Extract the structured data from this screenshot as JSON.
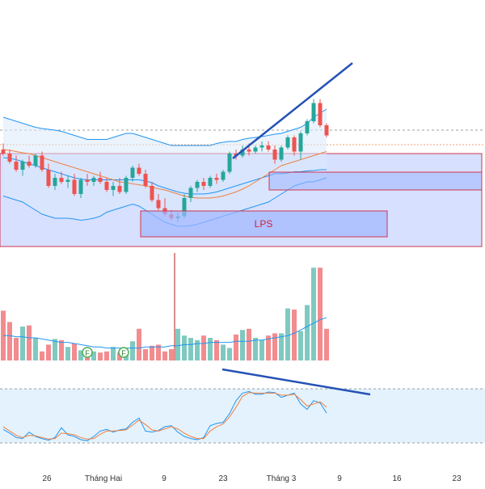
{
  "colors": {
    "up": "#26a69a",
    "down": "#ef5350",
    "vol_up": "#80c9c0",
    "vol_down": "#f28c8f",
    "bb_band": "#2196f3",
    "bb_fill": "#dbe9fb",
    "ma": "#f08040",
    "trendline": "#2452b5",
    "zone_fill": "#9fb6ff",
    "zone_border": "#d0334f",
    "stoch_k": "#2196f3",
    "stoch_d": "#f08040",
    "stoch_band": "#e3f2fd",
    "vline": "#b71c1c"
  },
  "chart_data": {
    "type": "candlestick",
    "zone_label": "LPS",
    "x_ticks": [
      "26",
      "Tháng Hai",
      "9",
      "23",
      "Tháng 3",
      "9",
      "16",
      "23"
    ],
    "candles": [
      {
        "o": 5.0,
        "h": 6.5,
        "l": 3.5,
        "c": 4.0
      },
      {
        "o": 4.0,
        "h": 5.0,
        "l": 1.5,
        "c": 2.0
      },
      {
        "o": 2.0,
        "h": 3.5,
        "l": -0.5,
        "c": 0.0
      },
      {
        "o": 0.0,
        "h": 2.5,
        "l": -1.5,
        "c": 2.0
      },
      {
        "o": 2.0,
        "h": 3.5,
        "l": 0.5,
        "c": 1.0
      },
      {
        "o": 1.0,
        "h": 4.0,
        "l": 0.5,
        "c": 3.5
      },
      {
        "o": 3.5,
        "h": 4.5,
        "l": -0.5,
        "c": 0.0
      },
      {
        "o": 0.0,
        "h": 1.5,
        "l": -4.5,
        "c": -4.0
      },
      {
        "o": -4.0,
        "h": -1.0,
        "l": -5.0,
        "c": -2.0
      },
      {
        "o": -2.0,
        "h": -0.5,
        "l": -3.5,
        "c": -3.0
      },
      {
        "o": -3.0,
        "h": -1.5,
        "l": -4.5,
        "c": -2.5
      },
      {
        "o": -2.5,
        "h": -1.0,
        "l": -6.5,
        "c": -6.0
      },
      {
        "o": -6.0,
        "h": -2.0,
        "l": -7.0,
        "c": -2.5
      },
      {
        "o": -2.5,
        "h": -1.0,
        "l": -4.0,
        "c": -3.0
      },
      {
        "o": -3.0,
        "h": -1.5,
        "l": -4.0,
        "c": -2.0
      },
      {
        "o": -2.0,
        "h": -0.5,
        "l": -3.5,
        "c": -3.0
      },
      {
        "o": -3.0,
        "h": -2.0,
        "l": -5.5,
        "c": -5.0
      },
      {
        "o": -5.0,
        "h": -3.0,
        "l": -6.5,
        "c": -4.0
      },
      {
        "o": -4.0,
        "h": -2.0,
        "l": -6.0,
        "c": -5.5
      },
      {
        "o": -5.5,
        "h": -1.5,
        "l": -6.0,
        "c": -2.0
      },
      {
        "o": -2.0,
        "h": 1.0,
        "l": -3.0,
        "c": 0.5
      },
      {
        "o": 0.5,
        "h": 1.5,
        "l": -1.5,
        "c": -1.0
      },
      {
        "o": -1.0,
        "h": 0.0,
        "l": -4.5,
        "c": -4.0
      },
      {
        "o": -4.0,
        "h": -3.0,
        "l": -8.0,
        "c": -7.5
      },
      {
        "o": -7.5,
        "h": -6.0,
        "l": -10.0,
        "c": -9.5
      },
      {
        "o": -9.5,
        "h": -7.0,
        "l": -11.5,
        "c": -11.0
      },
      {
        "o": -11.0,
        "h": -10.0,
        "l": -12.5,
        "c": -12.0
      },
      {
        "o": -12.0,
        "h": -10.5,
        "l": -13.0,
        "c": -11.5
      },
      {
        "o": -11.5,
        "h": -6.0,
        "l": -12.0,
        "c": -7.0
      },
      {
        "o": -7.0,
        "h": -4.0,
        "l": -8.0,
        "c": -4.5
      },
      {
        "o": -4.5,
        "h": -2.5,
        "l": -5.5,
        "c": -3.0
      },
      {
        "o": -3.0,
        "h": -2.0,
        "l": -5.0,
        "c": -4.0
      },
      {
        "o": -4.0,
        "h": -1.5,
        "l": -4.5,
        "c": -2.0
      },
      {
        "o": -2.0,
        "h": -1.0,
        "l": -3.5,
        "c": -2.5
      },
      {
        "o": -2.5,
        "h": 0.0,
        "l": -3.0,
        "c": -0.5
      },
      {
        "o": -0.5,
        "h": 4.5,
        "l": -1.0,
        "c": 4.0
      },
      {
        "o": 4.0,
        "h": 5.0,
        "l": 2.5,
        "c": 3.5
      },
      {
        "o": 3.5,
        "h": 6.0,
        "l": 3.0,
        "c": 5.0
      },
      {
        "o": 5.0,
        "h": 6.5,
        "l": 3.5,
        "c": 4.5
      },
      {
        "o": 4.5,
        "h": 6.0,
        "l": 4.0,
        "c": 5.5
      },
      {
        "o": 5.5,
        "h": 7.0,
        "l": 4.5,
        "c": 6.0
      },
      {
        "o": 6.0,
        "h": 7.0,
        "l": 4.5,
        "c": 5.0
      },
      {
        "o": 5.0,
        "h": 6.0,
        "l": 1.5,
        "c": 2.5
      },
      {
        "o": 2.5,
        "h": 6.0,
        "l": 2.0,
        "c": 5.5
      },
      {
        "o": 5.5,
        "h": 8.5,
        "l": 5.0,
        "c": 8.0
      },
      {
        "o": 8.0,
        "h": 8.5,
        "l": 3.5,
        "c": 4.5
      },
      {
        "o": 4.5,
        "h": 9.5,
        "l": 2.5,
        "c": 9.0
      },
      {
        "o": 9.0,
        "h": 12.5,
        "l": 8.5,
        "c": 12.0
      },
      {
        "o": 12.0,
        "h": 17.5,
        "l": 11.5,
        "c": 16.5
      },
      {
        "o": 16.5,
        "h": 17.5,
        "l": 10.5,
        "c": 11.0
      },
      {
        "o": 11.0,
        "h": 11.5,
        "l": 8.0,
        "c": 8.5
      }
    ],
    "bb_upper": [
      13,
      12.5,
      12,
      11.5,
      11,
      10.5,
      10.2,
      10,
      9.8,
      9.5,
      9,
      8.5,
      8,
      7.5,
      7.5,
      7.5,
      7.5,
      8,
      8.5,
      9,
      9,
      8.5,
      8,
      7.5,
      7,
      6.5,
      6,
      6,
      6,
      6,
      6,
      6,
      6,
      6.5,
      6.8,
      7,
      7,
      7.5,
      7.8,
      8,
      8.2,
      8.5,
      8.8,
      9,
      9.5,
      10,
      10.5,
      11.5,
      13,
      14,
      15
    ],
    "bb_lower": [
      -6.5,
      -7,
      -7.5,
      -8,
      -9,
      -10,
      -11,
      -11.5,
      -12,
      -12,
      -12,
      -12.2,
      -12.5,
      -12.3,
      -12,
      -11.5,
      -10.5,
      -10,
      -9.5,
      -9,
      -8.5,
      -9,
      -10,
      -11,
      -12,
      -13,
      -13.5,
      -14,
      -14,
      -13.8,
      -13.5,
      -13,
      -12.5,
      -12,
      -11.5,
      -11,
      -10.5,
      -10,
      -9.5,
      -9,
      -8.5,
      -8,
      -7,
      -6,
      -5,
      -4,
      -3.5,
      -3,
      -3,
      -2.5,
      -2
    ],
    "bb_middle": [
      3,
      2.8,
      2.5,
      2,
      1.5,
      1,
      0.5,
      0,
      -0.5,
      -1,
      -1.5,
      -2,
      -2.3,
      -2.5,
      -2.5,
      -2.5,
      -2.5,
      -2.5,
      -2.5,
      -2.5,
      -2.5,
      -2.5,
      -2.8,
      -3.2,
      -4,
      -4.5,
      -5,
      -5.5,
      -5.8,
      -6,
      -6,
      -6,
      -5.8,
      -5.5,
      -5,
      -4.5,
      -4,
      -3.5,
      -3,
      -2.5,
      -2,
      -1.5,
      -1,
      -1,
      -0.8,
      -0.5,
      -0.5,
      -0.3,
      -0.2,
      0,
      0
    ],
    "ma": [
      5,
      4.8,
      4.5,
      4.2,
      4,
      3.5,
      3,
      2.5,
      2,
      1.5,
      1,
      0.5,
      0,
      -0.5,
      -1,
      -1.5,
      -2,
      -2.5,
      -3,
      -3.2,
      -3.5,
      -3.7,
      -4,
      -4.3,
      -4.7,
      -5,
      -5.5,
      -6,
      -6.5,
      -6.8,
      -7,
      -7,
      -7,
      -6.8,
      -6.5,
      -6,
      -5.5,
      -4.8,
      -4,
      -3,
      -2,
      -1,
      0,
      1,
      1.5,
      2,
      2.5,
      3,
      3.5,
      4,
      4.5
    ],
    "volume": [
      44,
      34,
      20,
      30,
      31,
      20,
      8,
      14,
      19,
      18,
      12,
      15,
      9,
      11,
      8,
      7,
      8,
      12,
      7,
      9,
      17,
      28,
      10,
      13,
      14,
      8,
      10,
      28,
      22,
      20,
      18,
      22,
      20,
      18,
      14,
      11,
      23,
      27,
      28,
      20,
      18,
      22,
      24,
      24,
      46,
      45,
      26,
      49,
      82,
      82,
      28
    ],
    "volume_ma": [
      22,
      22,
      21,
      21,
      20,
      20,
      19,
      18,
      17,
      16,
      16,
      15,
      14,
      13,
      12,
      12,
      11,
      11,
      11,
      11,
      11,
      11,
      12,
      12,
      12,
      12,
      13,
      13,
      14,
      14,
      15,
      15,
      16,
      16,
      16,
      16,
      17,
      17,
      17,
      18,
      18,
      19,
      20,
      21,
      22,
      24,
      27,
      30,
      33,
      36,
      38
    ],
    "stoch_k": [
      25,
      18,
      10,
      8,
      20,
      12,
      8,
      5,
      10,
      28,
      15,
      12,
      6,
      4,
      12,
      22,
      25,
      20,
      24,
      26,
      38,
      46,
      22,
      20,
      23,
      30,
      32,
      20,
      12,
      8,
      6,
      10,
      32,
      36,
      38,
      54,
      78,
      92,
      95,
      90,
      90,
      94,
      93,
      84,
      88,
      92,
      72,
      62,
      78,
      74,
      55
    ],
    "stoch_d": [
      30,
      22,
      14,
      10,
      14,
      13,
      10,
      7,
      8,
      18,
      17,
      15,
      10,
      7,
      8,
      16,
      22,
      22,
      23,
      24,
      33,
      42,
      34,
      24,
      22,
      26,
      30,
      26,
      18,
      12,
      8,
      8,
      22,
      30,
      35,
      48,
      66,
      86,
      93,
      92,
      92,
      92,
      92,
      88,
      88,
      90,
      80,
      68,
      72,
      76,
      66
    ],
    "markers": [
      "F",
      "F"
    ]
  }
}
